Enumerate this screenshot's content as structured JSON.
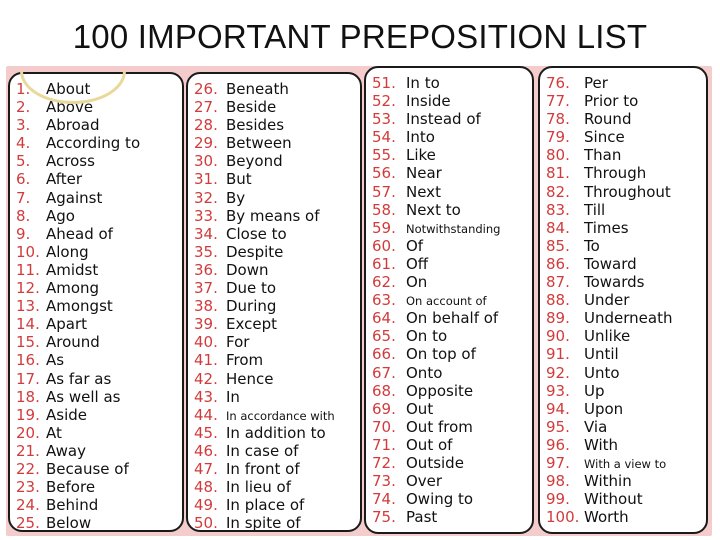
{
  "title": "100 IMPORTANT PREPOSITION LIST",
  "columns": [
    {
      "items": [
        {
          "n": "1.",
          "w": "About"
        },
        {
          "n": "2.",
          "w": "Above"
        },
        {
          "n": "3.",
          "w": "Abroad"
        },
        {
          "n": "4.",
          "w": "According to"
        },
        {
          "n": "5.",
          "w": "Across"
        },
        {
          "n": "6.",
          "w": "After"
        },
        {
          "n": "7.",
          "w": "Against"
        },
        {
          "n": "8.",
          "w": "Ago"
        },
        {
          "n": "9.",
          "w": "Ahead of"
        },
        {
          "n": "10.",
          "w": "Along"
        },
        {
          "n": "11.",
          "w": "Amidst"
        },
        {
          "n": "12.",
          "w": "Among"
        },
        {
          "n": "13.",
          "w": "Amongst"
        },
        {
          "n": "14.",
          "w": "Apart"
        },
        {
          "n": "15.",
          "w": "Around"
        },
        {
          "n": "16.",
          "w": "As"
        },
        {
          "n": "17.",
          "w": "As far as"
        },
        {
          "n": "18.",
          "w": "As well as"
        },
        {
          "n": "19.",
          "w": "Aside"
        },
        {
          "n": "20.",
          "w": "At"
        },
        {
          "n": "21.",
          "w": "Away"
        },
        {
          "n": "22.",
          "w": "Because of"
        },
        {
          "n": "23.",
          "w": "Before"
        },
        {
          "n": "24.",
          "w": "Behind"
        },
        {
          "n": "25.",
          "w": "Below"
        }
      ]
    },
    {
      "items": [
        {
          "n": "26.",
          "w": "Beneath"
        },
        {
          "n": "27.",
          "w": "Beside"
        },
        {
          "n": "28.",
          "w": "Besides"
        },
        {
          "n": "29.",
          "w": "Between"
        },
        {
          "n": "30.",
          "w": "Beyond"
        },
        {
          "n": "31.",
          "w": "But"
        },
        {
          "n": "32.",
          "w": "By"
        },
        {
          "n": "33.",
          "w": "By means of"
        },
        {
          "n": "34.",
          "w": "Close to"
        },
        {
          "n": "35.",
          "w": "Despite"
        },
        {
          "n": "36.",
          "w": "Down"
        },
        {
          "n": "37.",
          "w": "Due to"
        },
        {
          "n": "38.",
          "w": "During"
        },
        {
          "n": "39.",
          "w": "Except"
        },
        {
          "n": "40.",
          "w": "For"
        },
        {
          "n": "41.",
          "w": "From"
        },
        {
          "n": "42.",
          "w": "Hence"
        },
        {
          "n": "43.",
          "w": "In"
        },
        {
          "n": "44.",
          "w": "In accordance with",
          "small": true
        },
        {
          "n": "45.",
          "w": "In addition to"
        },
        {
          "n": "46.",
          "w": "In case of"
        },
        {
          "n": "47.",
          "w": "In front of"
        },
        {
          "n": "48.",
          "w": "In lieu of"
        },
        {
          "n": "49.",
          "w": "In place of"
        },
        {
          "n": "50.",
          "w": "In spite of"
        }
      ]
    },
    {
      "items": [
        {
          "n": "51.",
          "w": "In to"
        },
        {
          "n": "52.",
          "w": "Inside"
        },
        {
          "n": "53.",
          "w": "Instead of"
        },
        {
          "n": "54.",
          "w": "Into"
        },
        {
          "n": "55.",
          "w": "Like"
        },
        {
          "n": "56.",
          "w": "Near"
        },
        {
          "n": "57.",
          "w": "Next"
        },
        {
          "n": "58.",
          "w": "Next to"
        },
        {
          "n": "59.",
          "w": "Notwithstanding",
          "small": true
        },
        {
          "n": "60.",
          "w": "Of"
        },
        {
          "n": "61.",
          "w": "Off"
        },
        {
          "n": "62.",
          "w": "On"
        },
        {
          "n": "63.",
          "w": "On account of",
          "small": true
        },
        {
          "n": "64.",
          "w": "On behalf of"
        },
        {
          "n": "65.",
          "w": "On to"
        },
        {
          "n": "66.",
          "w": "On top of"
        },
        {
          "n": "67.",
          "w": "Onto"
        },
        {
          "n": "68.",
          "w": "Opposite"
        },
        {
          "n": "69.",
          "w": "Out"
        },
        {
          "n": "70.",
          "w": "Out from"
        },
        {
          "n": "71.",
          "w": "Out of"
        },
        {
          "n": "72.",
          "w": "Outside"
        },
        {
          "n": "73.",
          "w": "Over"
        },
        {
          "n": "74.",
          "w": "Owing to"
        },
        {
          "n": "75.",
          "w": "Past"
        }
      ]
    },
    {
      "items": [
        {
          "n": "76.",
          "w": "Per"
        },
        {
          "n": "77.",
          "w": "Prior to"
        },
        {
          "n": "78.",
          "w": "Round"
        },
        {
          "n": "79.",
          "w": "Since"
        },
        {
          "n": "80.",
          "w": "Than"
        },
        {
          "n": "81.",
          "w": "Through"
        },
        {
          "n": "82.",
          "w": "Throughout"
        },
        {
          "n": "83.",
          "w": "Till"
        },
        {
          "n": "84.",
          "w": "Times"
        },
        {
          "n": "85.",
          "w": "To"
        },
        {
          "n": "86.",
          "w": "Toward"
        },
        {
          "n": "87.",
          "w": "Towards"
        },
        {
          "n": "88.",
          "w": "Under"
        },
        {
          "n": "89.",
          "w": "Underneath"
        },
        {
          "n": "90.",
          "w": "Unlike"
        },
        {
          "n": "91.",
          "w": "Until"
        },
        {
          "n": "92.",
          "w": "Unto"
        },
        {
          "n": "93.",
          "w": "Up"
        },
        {
          "n": "94.",
          "w": "Upon"
        },
        {
          "n": "95.",
          "w": "Via"
        },
        {
          "n": "96.",
          "w": "With"
        },
        {
          "n": "97.",
          "w": "With a view to",
          "small": true
        },
        {
          "n": "98.",
          "w": "Within"
        },
        {
          "n": "99.",
          "w": "Without"
        },
        {
          "n": "100.",
          "w": "Worth"
        }
      ]
    }
  ],
  "colors": {
    "number": "#d23b3b",
    "background": "#f4cccb",
    "border": "#1a1a1a"
  }
}
